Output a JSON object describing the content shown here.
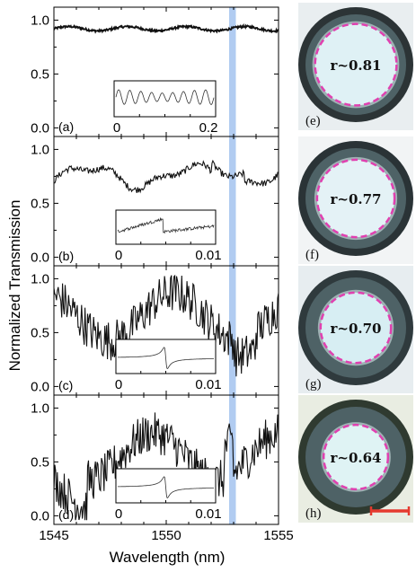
{
  "figure": {
    "y_title": "Normalized Transmission",
    "x_title": "Wavelength (nm)",
    "x_ticks": [
      "1545",
      "1550",
      "1555"
    ],
    "y_ticks": [
      "0.0",
      "0.5",
      "1.0"
    ],
    "highlight_color": "#a9c6ef",
    "scale_bar_color": "#e53a2f"
  },
  "chart_data": [
    {
      "type": "line",
      "panel_label": "(a)",
      "xlim": [
        1545,
        1555
      ],
      "ylim": [
        -0.08,
        1.12
      ],
      "highlight_band": [
        1552.8,
        1553.1
      ],
      "trace": "smooth_flat",
      "baseline": 0.92,
      "inset": {
        "x_ticks": [
          "0",
          "0.2"
        ],
        "trace": "oscillation"
      }
    },
    {
      "type": "line",
      "panel_label": "(b)",
      "xlim": [
        1545,
        1555
      ],
      "ylim": [
        -0.08,
        1.12
      ],
      "highlight_band": [
        1552.8,
        1553.1
      ],
      "trace": "wavy",
      "baseline": 0.75,
      "inset": {
        "x_ticks": [
          "0",
          "0.01"
        ],
        "trace": "broad_resonance"
      }
    },
    {
      "type": "line",
      "panel_label": "(c)",
      "xlim": [
        1545,
        1555
      ],
      "ylim": [
        -0.08,
        1.12
      ],
      "highlight_band": [
        1552.8,
        1553.1
      ],
      "trace": "noisy",
      "baseline": 0.65,
      "inset": {
        "x_ticks": [
          "0",
          "0.01"
        ],
        "trace": "sharp_resonance"
      }
    },
    {
      "type": "line",
      "panel_label": "(d)",
      "xlim": [
        1545,
        1555
      ],
      "ylim": [
        -0.08,
        1.12
      ],
      "highlight_band": [
        1552.8,
        1553.1
      ],
      "trace": "noisy",
      "baseline": 0.55,
      "inset": {
        "x_ticks": [
          "0",
          "0.01"
        ],
        "trace": "sharp_resonance"
      }
    }
  ],
  "photos": [
    {
      "label": "(e)",
      "r_text": "r~0.81",
      "ring_ratio": 0.81
    },
    {
      "label": "(f)",
      "r_text": "r~0.77",
      "ring_ratio": 0.77
    },
    {
      "label": "(g)",
      "r_text": "r~0.70",
      "ring_ratio": 0.7
    },
    {
      "label": "(h)",
      "r_text": "r~0.64",
      "ring_ratio": 0.64
    }
  ]
}
